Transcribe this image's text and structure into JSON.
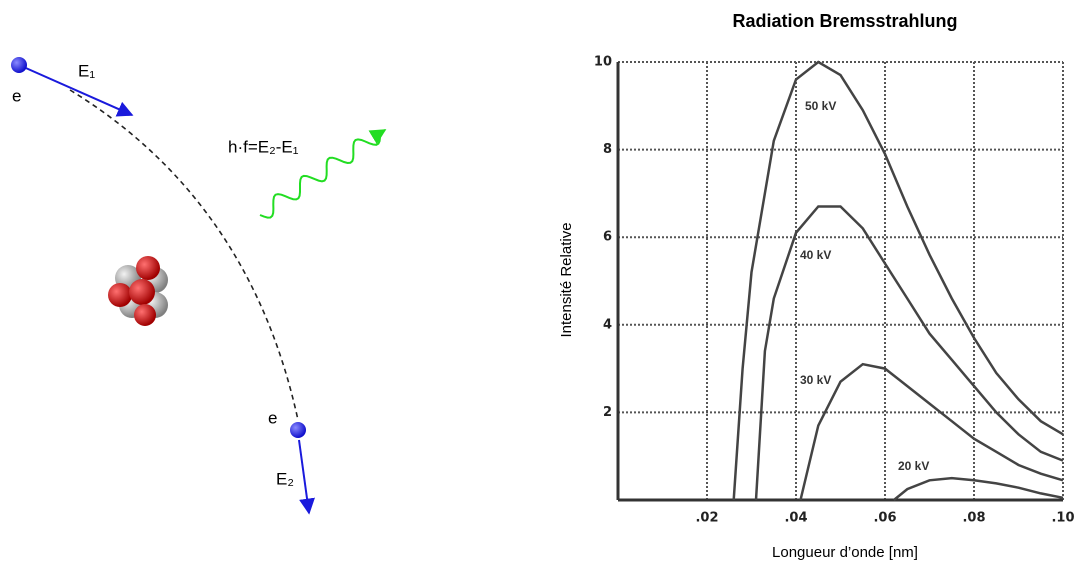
{
  "diagram": {
    "electron_start_label": "e",
    "energy_start_label": "E₁",
    "photon_label": "h·f=E₂-E₁",
    "electron_end_label": "e",
    "energy_end_label": "E₂"
  },
  "chart_data": {
    "type": "line",
    "title": "Radiation Bremsstrahlung",
    "x_label": "Longueur d’onde [nm]",
    "y_label": "Intensité Relative",
    "xlim": [
      0,
      0.1
    ],
    "ylim": [
      0,
      10
    ],
    "xticks": [
      {
        "value": 0.02,
        "label": ".02"
      },
      {
        "value": 0.04,
        "label": ".04"
      },
      {
        "value": 0.06,
        "label": ".06"
      },
      {
        "value": 0.08,
        "label": ".08"
      },
      {
        "value": 0.1,
        "label": ".10"
      }
    ],
    "yticks": [
      2,
      4,
      6,
      8,
      10
    ],
    "grid": true,
    "series": [
      {
        "name": "50 kV",
        "color": "#444444",
        "x": [
          0.026,
          0.028,
          0.03,
          0.035,
          0.04,
          0.045,
          0.05,
          0.055,
          0.06,
          0.065,
          0.07,
          0.075,
          0.08,
          0.085,
          0.09,
          0.095,
          0.1
        ],
        "values": [
          0,
          3,
          5.2,
          8.2,
          9.6,
          10,
          9.7,
          8.9,
          7.9,
          6.7,
          5.6,
          4.6,
          3.7,
          2.9,
          2.3,
          1.8,
          1.5
        ]
      },
      {
        "name": "40 kV",
        "color": "#444444",
        "x": [
          0.031,
          0.033,
          0.035,
          0.04,
          0.045,
          0.05,
          0.055,
          0.06,
          0.065,
          0.07,
          0.075,
          0.08,
          0.085,
          0.09,
          0.095,
          0.1
        ],
        "values": [
          0,
          3.4,
          4.6,
          6.1,
          6.7,
          6.7,
          6.2,
          5.4,
          4.6,
          3.8,
          3.2,
          2.6,
          2.0,
          1.5,
          1.1,
          0.9
        ]
      },
      {
        "name": "30 kV",
        "color": "#444444",
        "x": [
          0.041,
          0.045,
          0.05,
          0.055,
          0.06,
          0.065,
          0.07,
          0.075,
          0.08,
          0.085,
          0.09,
          0.095,
          0.1
        ],
        "values": [
          0,
          1.7,
          2.7,
          3.1,
          3.0,
          2.6,
          2.2,
          1.8,
          1.4,
          1.1,
          0.8,
          0.6,
          0.45
        ]
      },
      {
        "name": "20 kV",
        "color": "#444444",
        "x": [
          0.062,
          0.065,
          0.07,
          0.075,
          0.08,
          0.085,
          0.09,
          0.095,
          0.1
        ],
        "values": [
          0,
          0.25,
          0.45,
          0.5,
          0.45,
          0.38,
          0.28,
          0.15,
          0.05
        ]
      }
    ]
  }
}
